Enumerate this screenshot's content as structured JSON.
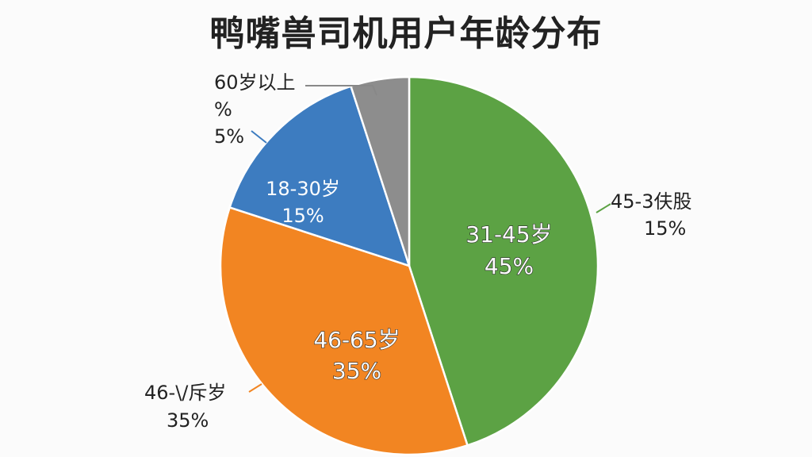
{
  "chart_data": {
    "type": "pie",
    "title": "鸭嘴兽司机用户年龄分布",
    "slices": [
      {
        "label": "31-45岁",
        "value": 45,
        "value_label": "45%",
        "color": "#5ca244"
      },
      {
        "label": "46-65岁",
        "value": 35,
        "value_label": "35%",
        "color": "#f28522"
      },
      {
        "label": "18-30岁",
        "value": 15,
        "value_label": "15%",
        "color": "#3d7cc0"
      },
      {
        "label": "60岁以上",
        "value": 5,
        "value_label": "5%",
        "color": "#8d8d8d"
      }
    ],
    "outer_labels": [
      {
        "lines": [
          "60岁以上",
          "%",
          "5%"
        ],
        "leader_color": "#888888"
      },
      {
        "lines": [
          "45-3伕股",
          "15%"
        ],
        "leader_color": "#5ca244"
      },
      {
        "lines": [
          "46-\\/斥岁",
          "35%"
        ],
        "leader_color": "#f28522"
      }
    ]
  }
}
